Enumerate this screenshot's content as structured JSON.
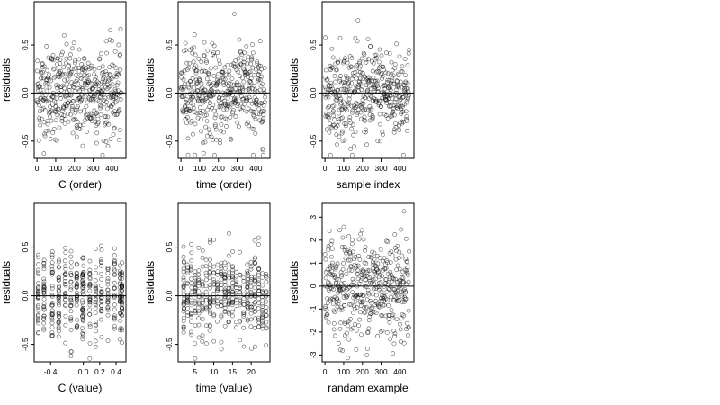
{
  "chart_data": [
    {
      "type": "scatter",
      "xlabel": "C (order)",
      "ylabel": "residuals",
      "xlim": [
        -15,
        475
      ],
      "ylim": [
        -0.68,
        0.95
      ],
      "xticks": [
        0,
        100,
        200,
        300,
        400
      ],
      "xtick_labels": [
        "0",
        "100",
        "200",
        "300",
        "400"
      ],
      "yticks": [
        -0.5,
        0.0,
        0.5
      ],
      "ytick_labels": [
        "-0.5",
        "0.0",
        "0.5"
      ],
      "hline": 0,
      "pattern": "order",
      "notes": "450 residuals plotted against index after ordering by C; values roughly within -0.6 to 0.9"
    },
    {
      "type": "scatter",
      "xlabel": "time (order)",
      "ylabel": "residuals",
      "xlim": [
        -15,
        475
      ],
      "ylim": [
        -0.68,
        0.95
      ],
      "xticks": [
        0,
        100,
        200,
        300,
        400
      ],
      "xtick_labels": [
        "0",
        "100",
        "200",
        "300",
        "400"
      ],
      "yticks": [
        -0.5,
        0.0,
        0.5
      ],
      "ytick_labels": [
        "-0.5",
        "0.0",
        "0.5"
      ],
      "hline": 0,
      "pattern": "order"
    },
    {
      "type": "scatter",
      "xlabel": "sample index",
      "ylabel": "residuals",
      "xlim": [
        -15,
        475
      ],
      "ylim": [
        -0.68,
        0.95
      ],
      "xticks": [
        0,
        100,
        200,
        300,
        400
      ],
      "xtick_labels": [
        "0",
        "100",
        "200",
        "300",
        "400"
      ],
      "yticks": [
        -0.5,
        0.0,
        0.5
      ],
      "ytick_labels": [
        "-0.5",
        "0.0",
        "0.5"
      ],
      "hline": 0,
      "pattern": "order"
    },
    {
      "type": "scatter",
      "xlabel": "C (value)",
      "ylabel": "residuals",
      "xlim": [
        -0.6,
        0.52
      ],
      "ylim": [
        -0.68,
        0.95
      ],
      "xticks": [
        -0.4,
        0.0,
        0.2,
        0.4
      ],
      "xtick_labels": [
        "-0.4",
        "0.0",
        "0.2",
        "0.4"
      ],
      "yticks": [
        -0.5,
        0.0,
        0.5
      ],
      "ytick_labels": [
        "-0.5",
        "0.0",
        "0.5"
      ],
      "hline": 0,
      "pattern": "columns",
      "column_centers": [
        -0.55,
        -0.48,
        -0.38,
        -0.3,
        -0.22,
        -0.15,
        -0.08,
        -0.01,
        0.0,
        0.08,
        0.15,
        0.22,
        0.3,
        0.38,
        0.45,
        0.47
      ]
    },
    {
      "type": "scatter",
      "xlabel": "time (value)",
      "ylabel": "residuals",
      "xlim": [
        0.5,
        25
      ],
      "ylim": [
        -0.68,
        0.95
      ],
      "xticks": [
        5,
        10,
        15,
        20
      ],
      "xtick_labels": [
        "5",
        "10",
        "15",
        "20"
      ],
      "yticks": [
        -0.5,
        0.0,
        0.5
      ],
      "ytick_labels": [
        "-0.5",
        "0.0",
        "0.5"
      ],
      "hline": 0,
      "pattern": "columns",
      "column_centers": [
        2,
        3,
        4,
        5,
        6,
        7,
        8,
        9,
        10,
        11,
        12,
        13,
        14,
        15,
        16,
        17,
        18,
        19,
        20,
        21,
        22,
        23,
        24
      ]
    },
    {
      "type": "scatter",
      "xlabel": "randam example",
      "ylabel": "residuals",
      "xlim": [
        -15,
        475
      ],
      "ylim": [
        -3.3,
        3.6
      ],
      "xticks": [
        0,
        100,
        200,
        300,
        400
      ],
      "xtick_labels": [
        "0",
        "100",
        "200",
        "300",
        "400"
      ],
      "yticks": [
        -3,
        -2,
        -1,
        0,
        1,
        2,
        3
      ],
      "ytick_labels": [
        "-3",
        "-2",
        "-1",
        "0",
        "1",
        "2",
        "3"
      ],
      "hline": 0,
      "pattern": "order"
    }
  ]
}
